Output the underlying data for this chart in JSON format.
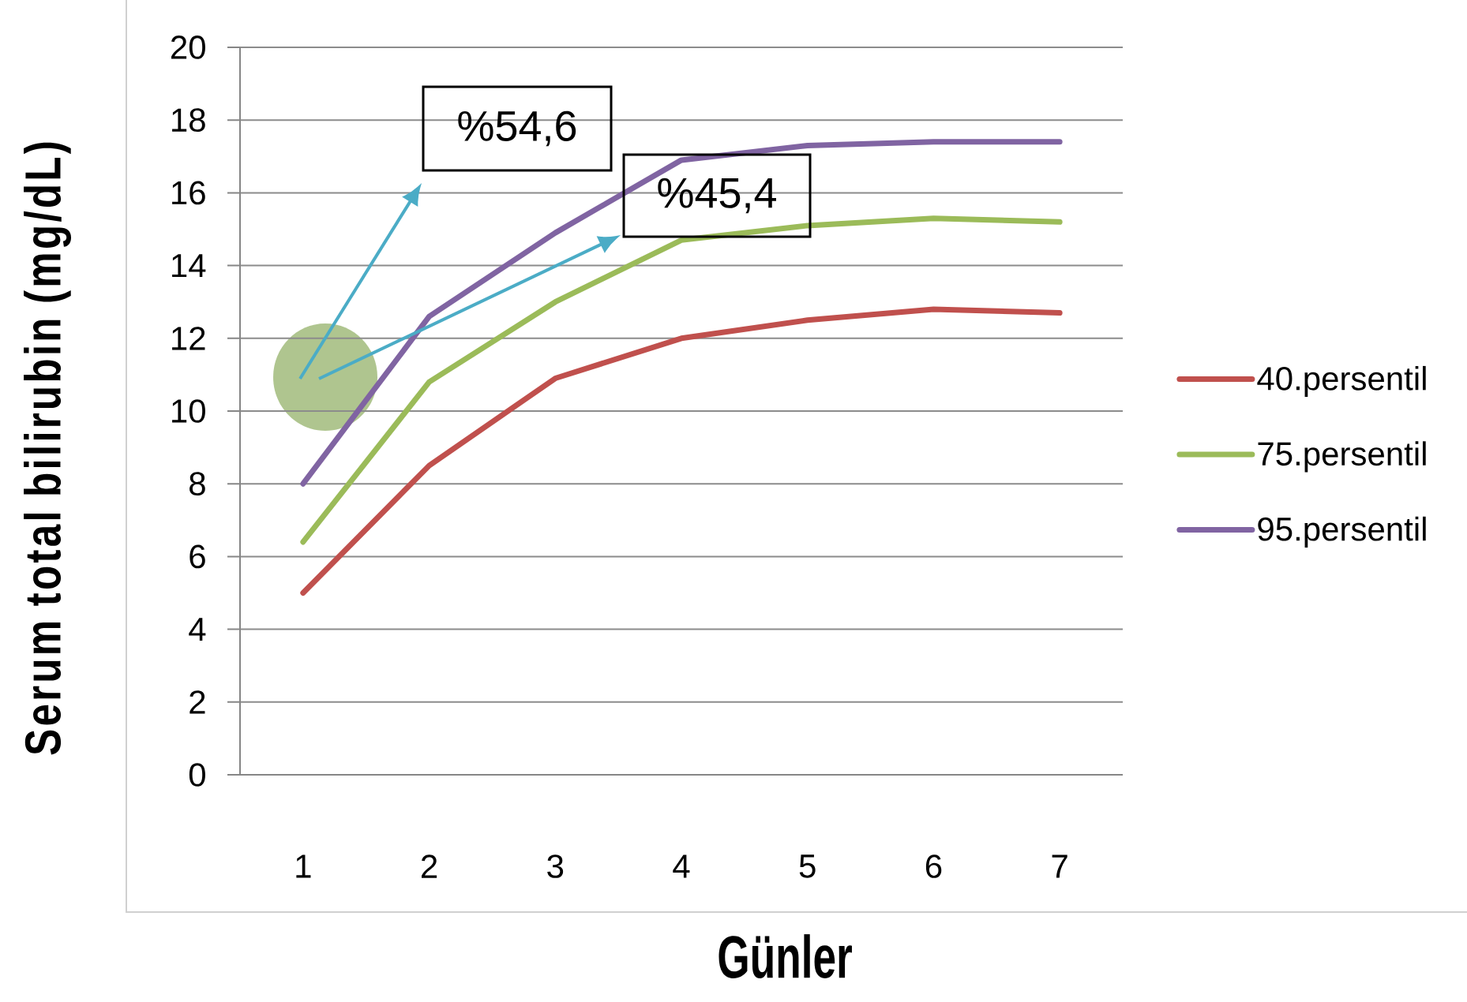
{
  "chart_data": {
    "type": "line",
    "xlabel": "Günler",
    "ylabel": "Serum total bilirubin (mg/dL)",
    "categories": [
      "1",
      "2",
      "3",
      "4",
      "5",
      "6",
      "7"
    ],
    "series": [
      {
        "name": "40.persentil",
        "color": "#c0504d",
        "values": [
          5.0,
          8.5,
          10.9,
          12.0,
          12.5,
          12.8,
          12.7
        ]
      },
      {
        "name": "75.persentil",
        "color": "#9bbb59",
        "values": [
          6.4,
          10.8,
          13.0,
          14.7,
          15.1,
          15.3,
          15.2
        ]
      },
      {
        "name": "95.persentil",
        "color": "#8064a2",
        "values": [
          8.0,
          12.6,
          14.9,
          16.9,
          17.3,
          17.4,
          17.4
        ]
      }
    ],
    "ylim": [
      0,
      20
    ],
    "yticks": [
      0,
      2,
      4,
      6,
      8,
      10,
      12,
      14,
      16,
      18,
      20
    ],
    "grid": "y",
    "legend": "right",
    "marker": "none",
    "line_style": "solid",
    "annotations": [
      "%54,6",
      "%45,4"
    ]
  }
}
